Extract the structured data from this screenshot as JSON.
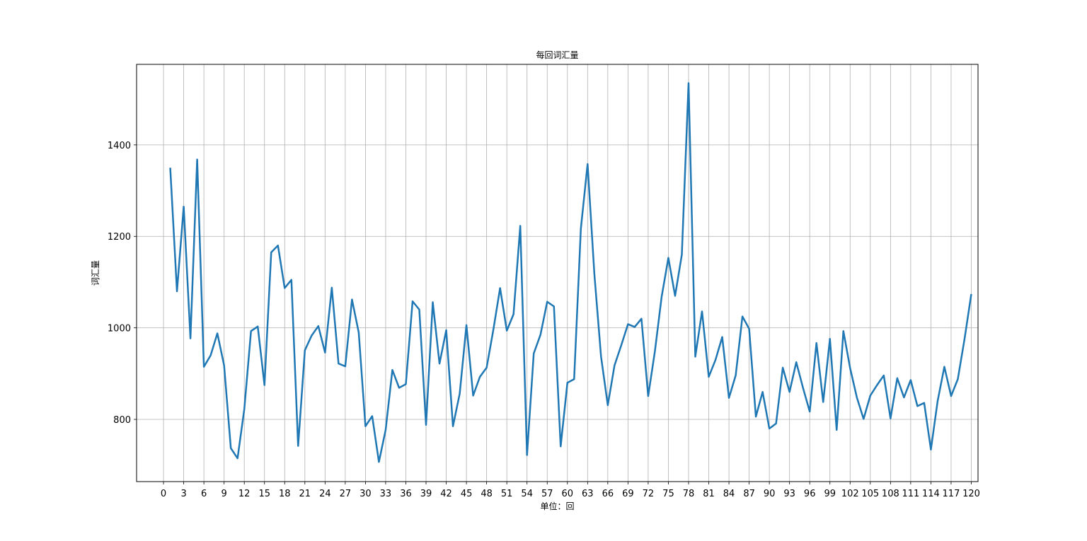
{
  "chart_data": {
    "type": "line",
    "title": "每回词汇量",
    "xlabel": "单位：回",
    "ylabel": "词汇量",
    "xlim": [
      -4,
      121
    ],
    "ylim": [
      664,
      1576
    ],
    "xticks": [
      0,
      3,
      6,
      9,
      12,
      15,
      18,
      21,
      24,
      27,
      30,
      33,
      36,
      39,
      42,
      45,
      48,
      51,
      54,
      57,
      60,
      63,
      66,
      69,
      72,
      75,
      78,
      81,
      84,
      87,
      90,
      93,
      96,
      99,
      102,
      105,
      108,
      111,
      114,
      117,
      120
    ],
    "yticks": [
      800,
      1000,
      1200,
      1400
    ],
    "grid": true,
    "series_color": "#1f77b4",
    "x": [
      1,
      2,
      3,
      4,
      5,
      6,
      7,
      8,
      9,
      10,
      11,
      12,
      13,
      14,
      15,
      16,
      17,
      18,
      19,
      20,
      21,
      22,
      23,
      24,
      25,
      26,
      27,
      28,
      29,
      30,
      31,
      32,
      33,
      34,
      35,
      36,
      37,
      38,
      39,
      40,
      41,
      42,
      43,
      44,
      45,
      46,
      47,
      48,
      49,
      50,
      51,
      52,
      53,
      54,
      55,
      56,
      57,
      58,
      59,
      60,
      61,
      62,
      63,
      64,
      65,
      66,
      67,
      68,
      69,
      70,
      71,
      72,
      73,
      74,
      75,
      76,
      77,
      78,
      79,
      80,
      81,
      82,
      83,
      84,
      85,
      86,
      87,
      88,
      89,
      90,
      91,
      92,
      93,
      94,
      95,
      96,
      97,
      98,
      99,
      100,
      101,
      102,
      103,
      104,
      105,
      106,
      107,
      108,
      109,
      110,
      111,
      112,
      113,
      114,
      115,
      116,
      117,
      118,
      119,
      120
    ],
    "y": [
      1350,
      1080,
      1265,
      977,
      1368,
      915,
      940,
      988,
      918,
      737,
      715,
      822,
      993,
      1003,
      875,
      1165,
      1180,
      1087,
      1105,
      742,
      951,
      983,
      1004,
      946,
      1088,
      922,
      916,
      1062,
      990,
      785,
      807,
      707,
      777,
      908,
      869,
      877,
      1058,
      1040,
      788,
      1056,
      922,
      995,
      785,
      856,
      1006,
      852,
      893,
      913,
      996,
      1087,
      994,
      1030,
      1223,
      722,
      944,
      985,
      1057,
      1047,
      741,
      880,
      888,
      1217,
      1358,
      1119,
      937,
      831,
      918,
      962,
      1008,
      1002,
      1020,
      851,
      949,
      1068,
      1153,
      1070,
      1160,
      1535,
      937,
      1036,
      893,
      930,
      980,
      847,
      896,
      1025,
      998,
      806,
      860,
      780,
      791,
      913,
      860,
      925,
      869,
      817,
      967,
      838,
      976,
      777,
      993,
      912,
      848,
      801,
      852,
      875,
      896,
      802,
      890,
      848,
      886,
      829,
      836,
      734,
      840,
      915,
      851,
      888,
      976,
      1074
    ]
  }
}
